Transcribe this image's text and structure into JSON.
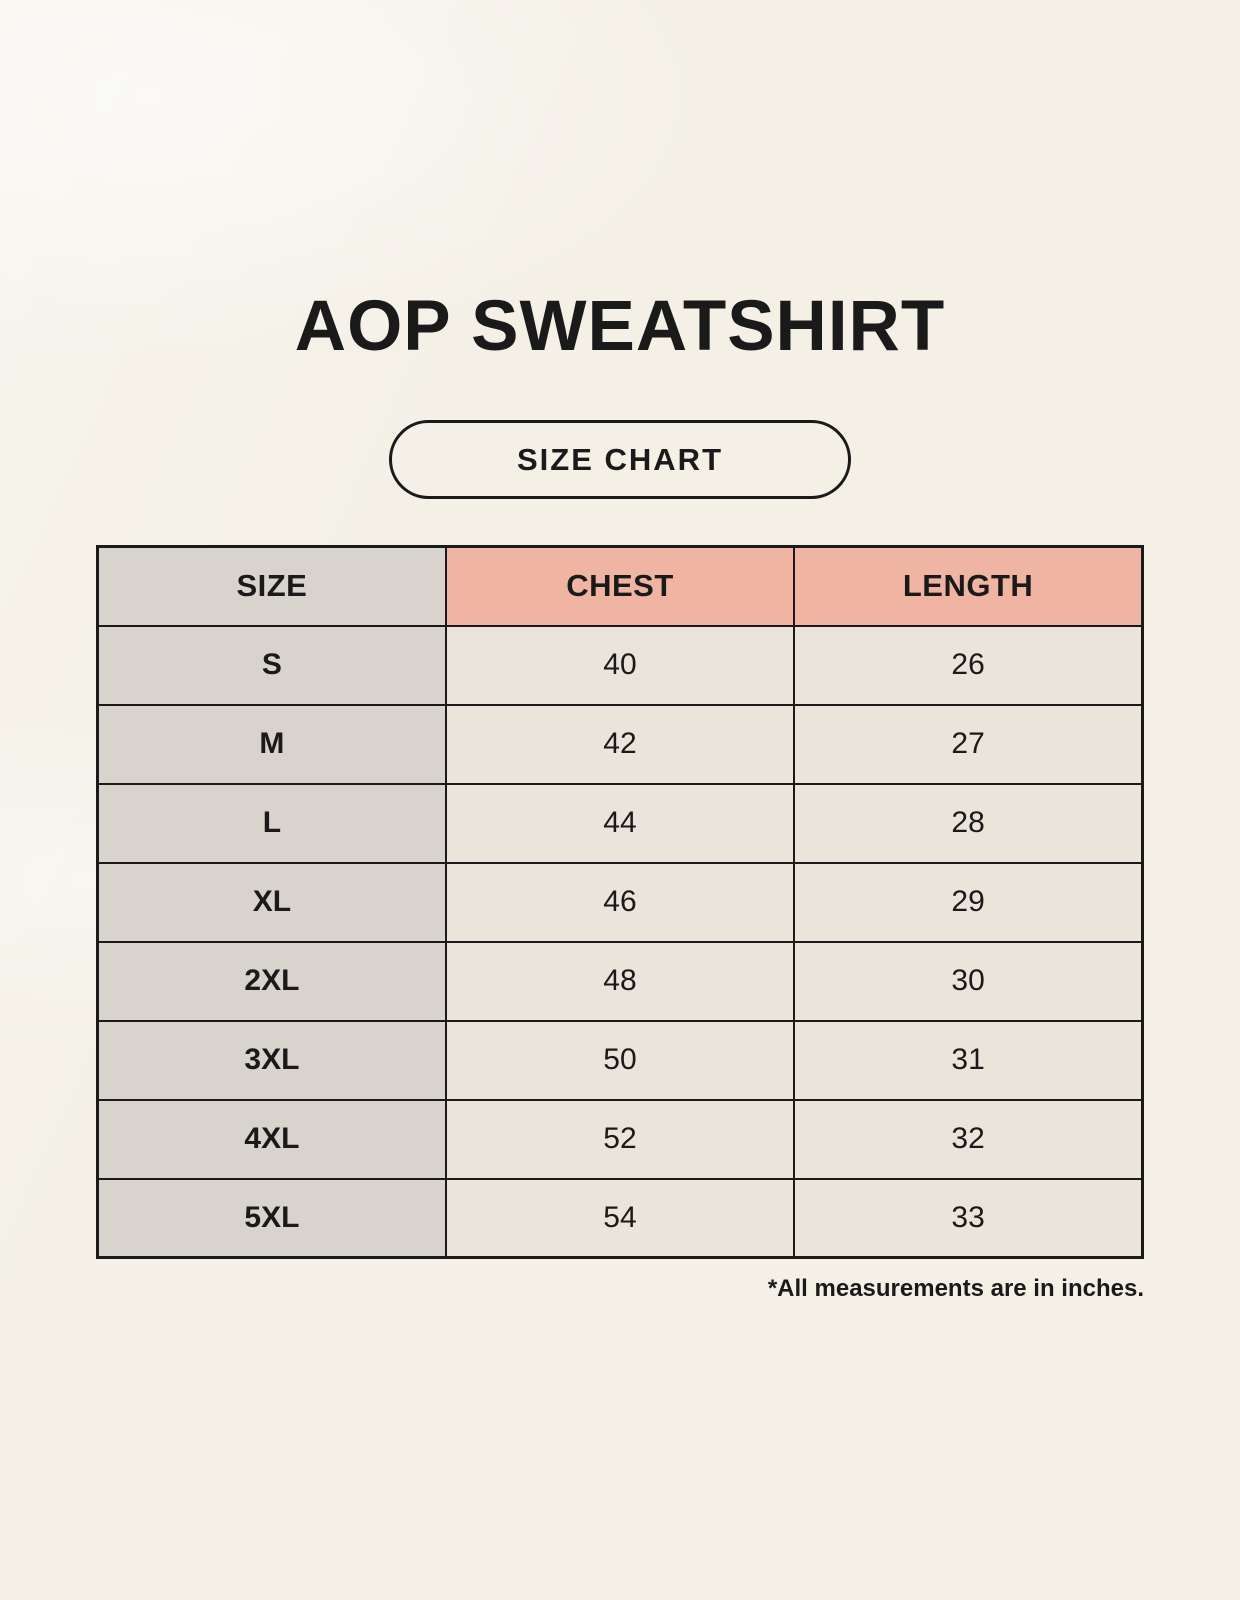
{
  "page": {
    "title": "AOP SWEATSHIRT",
    "badge_label": "SIZE CHART",
    "footnote": "*All measurements are in inches."
  },
  "colors": {
    "background": "#f4f0e6",
    "header_accent": "#f0b4a3",
    "size_column": "#d9d3ce",
    "cell": "#eae4da",
    "border": "#1a1a1a",
    "text": "#1a1a1a"
  },
  "table": {
    "columns": [
      {
        "key": "size",
        "label": "SIZE"
      },
      {
        "key": "chest",
        "label": "CHEST"
      },
      {
        "key": "length",
        "label": "LENGTH"
      }
    ],
    "rows": [
      {
        "size": "S",
        "chest": "40",
        "length": "26"
      },
      {
        "size": "M",
        "chest": "42",
        "length": "27"
      },
      {
        "size": "L",
        "chest": "44",
        "length": "28"
      },
      {
        "size": "XL",
        "chest": "46",
        "length": "29"
      },
      {
        "size": "2XL",
        "chest": "48",
        "length": "30"
      },
      {
        "size": "3XL",
        "chest": "50",
        "length": "31"
      },
      {
        "size": "4XL",
        "chest": "52",
        "length": "32"
      },
      {
        "size": "5XL",
        "chest": "54",
        "length": "33"
      }
    ]
  },
  "chart_data": {
    "type": "table",
    "title": "AOP SWEATSHIRT",
    "subtitle": "SIZE CHART",
    "columns": [
      "SIZE",
      "CHEST",
      "LENGTH"
    ],
    "rows": [
      [
        "S",
        40,
        26
      ],
      [
        "M",
        42,
        27
      ],
      [
        "L",
        44,
        28
      ],
      [
        "XL",
        46,
        29
      ],
      [
        "2XL",
        48,
        30
      ],
      [
        "3XL",
        50,
        31
      ],
      [
        "4XL",
        52,
        32
      ],
      [
        "5XL",
        54,
        33
      ]
    ],
    "note": "*All measurements are in inches.",
    "units": "inches"
  }
}
